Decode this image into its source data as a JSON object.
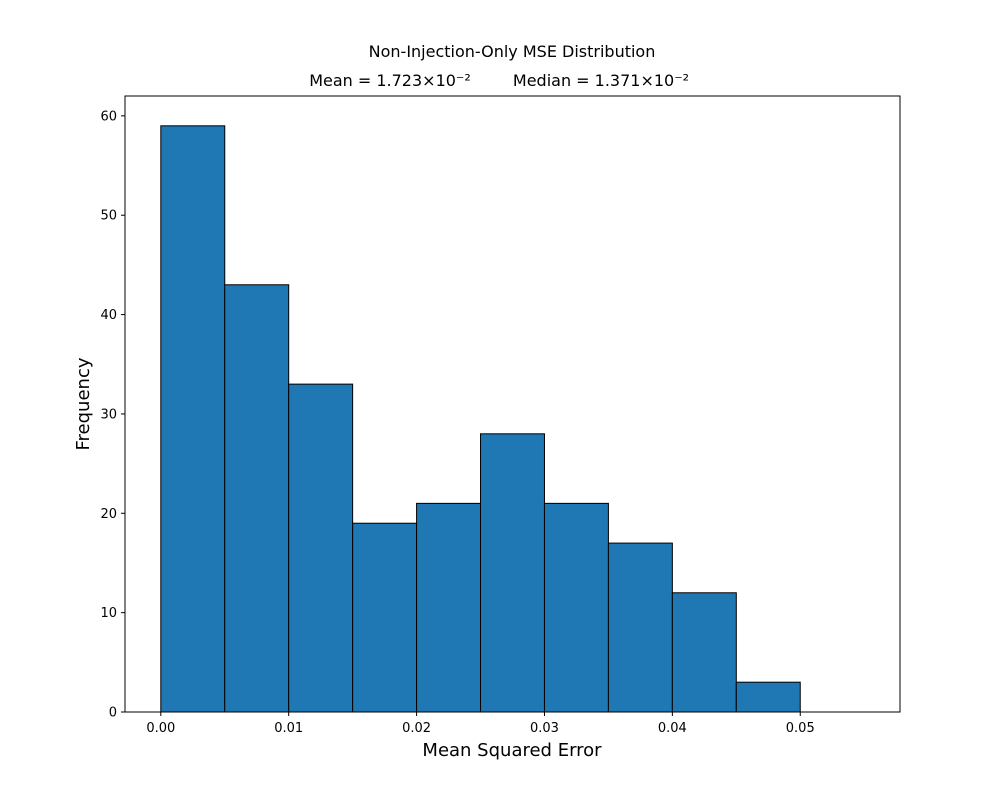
{
  "chart_data": {
    "type": "bar",
    "title": "Non-Injection-Only MSE Distribution",
    "subtitle_left": "Mean = 1.723×10⁻²",
    "subtitle_right": "Median = 1.371×10⁻²",
    "xlabel": "Mean Squared Error",
    "ylabel": "Frequency",
    "xlim": [
      -0.0028,
      0.0578
    ],
    "ylim": [
      0,
      62
    ],
    "bins": [
      {
        "x0": 0.0,
        "x1": 0.005,
        "value": 59
      },
      {
        "x0": 0.005,
        "x1": 0.01,
        "value": 43
      },
      {
        "x0": 0.01,
        "x1": 0.015,
        "value": 33
      },
      {
        "x0": 0.015,
        "x1": 0.02,
        "value": 19
      },
      {
        "x0": 0.02,
        "x1": 0.025,
        "value": 21
      },
      {
        "x0": 0.025,
        "x1": 0.03,
        "value": 28
      },
      {
        "x0": 0.03,
        "x1": 0.035,
        "value": 21
      },
      {
        "x0": 0.035,
        "x1": 0.04,
        "value": 17
      },
      {
        "x0": 0.04,
        "x1": 0.045,
        "value": 12
      },
      {
        "x0": 0.045,
        "x1": 0.05,
        "value": 3
      },
      {
        "x0": 0.05,
        "x1": 0.055,
        "value": 0
      }
    ],
    "xticks": [
      {
        "value": 0.0,
        "label": "0.00"
      },
      {
        "value": 0.01,
        "label": "0.01"
      },
      {
        "value": 0.02,
        "label": "0.02"
      },
      {
        "value": 0.03,
        "label": "0.03"
      },
      {
        "value": 0.04,
        "label": "0.04"
      },
      {
        "value": 0.05,
        "label": "0.05"
      }
    ],
    "yticks": [
      {
        "value": 0,
        "label": "0"
      },
      {
        "value": 10,
        "label": "10"
      },
      {
        "value": 20,
        "label": "20"
      },
      {
        "value": 30,
        "label": "30"
      },
      {
        "value": 40,
        "label": "40"
      },
      {
        "value": 50,
        "label": "50"
      },
      {
        "value": 60,
        "label": "60"
      }
    ],
    "grid": false,
    "bar_color": "#1f77b4",
    "edge_color": "#000000"
  }
}
